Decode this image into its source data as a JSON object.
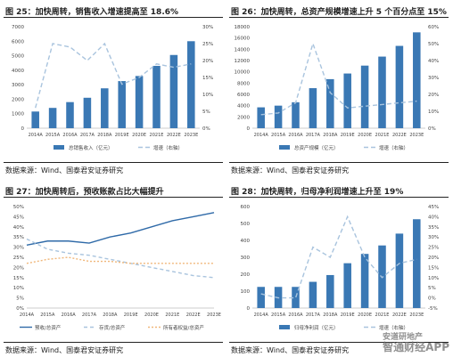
{
  "chart_data": [
    {
      "type": "bar",
      "title": "图 25：加快周转，销售收入增速提高至 18.6%",
      "source": "数据来源：Wind、国泰君安证券研究",
      "categories": [
        "2014A",
        "2015A",
        "2016A",
        "2017A",
        "2018A",
        "2019E",
        "2020E",
        "2021E",
        "2022E",
        "2023E"
      ],
      "bar_color": "#3a78b4",
      "line_color": "#a9c4de",
      "series": [
        {
          "name": "总销售收入（亿元）",
          "type": "bar",
          "axis": "left",
          "values": [
            1150,
            1400,
            1800,
            2100,
            2750,
            3250,
            3600,
            4300,
            5050,
            6000
          ]
        },
        {
          "name": "增速（右轴）",
          "type": "line",
          "axis": "right",
          "values": [
            0.06,
            0.25,
            0.24,
            0.2,
            0.25,
            0.13,
            0.15,
            0.19,
            0.18,
            0.19
          ]
        }
      ],
      "y_left": {
        "min": 0,
        "max": 7000,
        "ticks": [
          "0",
          "1000",
          "2000",
          "3000",
          "4000",
          "5000",
          "6000",
          "7000"
        ]
      },
      "y_right": {
        "min": 0,
        "max": 0.3,
        "ticks": [
          "0%",
          "5%",
          "10%",
          "15%",
          "20%",
          "25%",
          "30%"
        ]
      }
    },
    {
      "type": "bar",
      "title": "图 26：加快周转，总资产规模增速上升 5 个百分点至 15%",
      "source": "数据来源：Wind、国泰君安证券研究",
      "categories": [
        "2014A",
        "2015A",
        "2016A",
        "2017A",
        "2018A",
        "2019E",
        "2020E",
        "2021E",
        "2022E",
        "2023E"
      ],
      "bar_color": "#3a78b4",
      "line_color": "#a9c4de",
      "series": [
        {
          "name": "总资产规模（亿元）",
          "type": "bar",
          "axis": "left",
          "values": [
            3700,
            4000,
            4600,
            7100,
            8700,
            9700,
            11100,
            12700,
            14600,
            17000
          ]
        },
        {
          "name": "增速（右轴）",
          "type": "line",
          "axis": "right",
          "values": [
            0.08,
            0.09,
            0.15,
            0.5,
            0.21,
            0.12,
            0.13,
            0.14,
            0.15,
            0.16
          ]
        }
      ],
      "y_left": {
        "min": 0,
        "max": 18000,
        "ticks": [
          "0",
          "2000",
          "4000",
          "6000",
          "8000",
          "10000",
          "12000",
          "14000",
          "16000",
          "18000"
        ]
      },
      "y_right": {
        "min": 0,
        "max": 0.6,
        "ticks": [
          "0%",
          "10%",
          "20%",
          "30%",
          "40%",
          "50%",
          "60%"
        ]
      }
    },
    {
      "type": "line",
      "title": "图 27：加快周转后，预收账款占比大幅提升",
      "source": "数据来源：Wind、国泰君安证券研究",
      "categories": [
        "2014A",
        "2015A",
        "2016A",
        "2017A",
        "2018A",
        "2019E",
        "2020E",
        "2021E",
        "2022E",
        "2023E"
      ],
      "series": [
        {
          "name": "预收/总资产",
          "color": "#2f6aa8",
          "dash": "",
          "values": [
            0.31,
            0.33,
            0.33,
            0.32,
            0.35,
            0.37,
            0.4,
            0.43,
            0.45,
            0.47
          ]
        },
        {
          "name": "存货/总资产",
          "color": "#a9c4de",
          "dash": "4,3",
          "values": [
            0.34,
            0.29,
            0.27,
            0.26,
            0.24,
            0.22,
            0.2,
            0.18,
            0.16,
            0.15
          ]
        },
        {
          "name": "所有者权益/总资产",
          "color": "#f0b77a",
          "dash": "2,2",
          "values": [
            0.22,
            0.24,
            0.25,
            0.23,
            0.23,
            0.22,
            0.22,
            0.22,
            0.22,
            0.22
          ]
        }
      ],
      "y_left": {
        "min": 0,
        "max": 0.5,
        "ticks": [
          "0%",
          "5%",
          "10%",
          "15%",
          "20%",
          "25%",
          "30%",
          "35%",
          "40%",
          "45%",
          "50%"
        ]
      }
    },
    {
      "type": "bar",
      "title": "图 28：加快周转，归母净利润增速上升至 19%",
      "source": "数据来源：Wind、国泰君安证券研究",
      "categories": [
        "2014A",
        "2015A",
        "2016A",
        "2017A",
        "2018A",
        "2019E",
        "2020E",
        "2021E",
        "2022E",
        "2023E"
      ],
      "bar_color": "#3a78b4",
      "line_color": "#a9c4de",
      "series": [
        {
          "name": "归母净利润（亿元）",
          "type": "bar",
          "axis": "left",
          "values": [
            125,
            125,
            125,
            155,
            195,
            265,
            320,
            370,
            440,
            525
          ]
        },
        {
          "name": "增速（右轴）",
          "type": "line",
          "axis": "right",
          "values": [
            0.02,
            0.0,
            0.0,
            0.25,
            0.2,
            0.4,
            0.2,
            0.1,
            0.17,
            0.19
          ]
        }
      ],
      "y_left": {
        "min": 0,
        "max": 600,
        "ticks": [
          "0",
          "100",
          "200",
          "300",
          "400",
          "500",
          "600"
        ]
      },
      "y_right": {
        "min": -0.05,
        "max": 0.45,
        "ticks": [
          "-5%",
          "0%",
          "5%",
          "10%",
          "15%",
          "20%",
          "25%",
          "30%",
          "35%",
          "40%",
          "45%"
        ]
      }
    }
  ],
  "watermark": {
    "line1": "智通财经APP",
    "line2": "安道研地产"
  }
}
